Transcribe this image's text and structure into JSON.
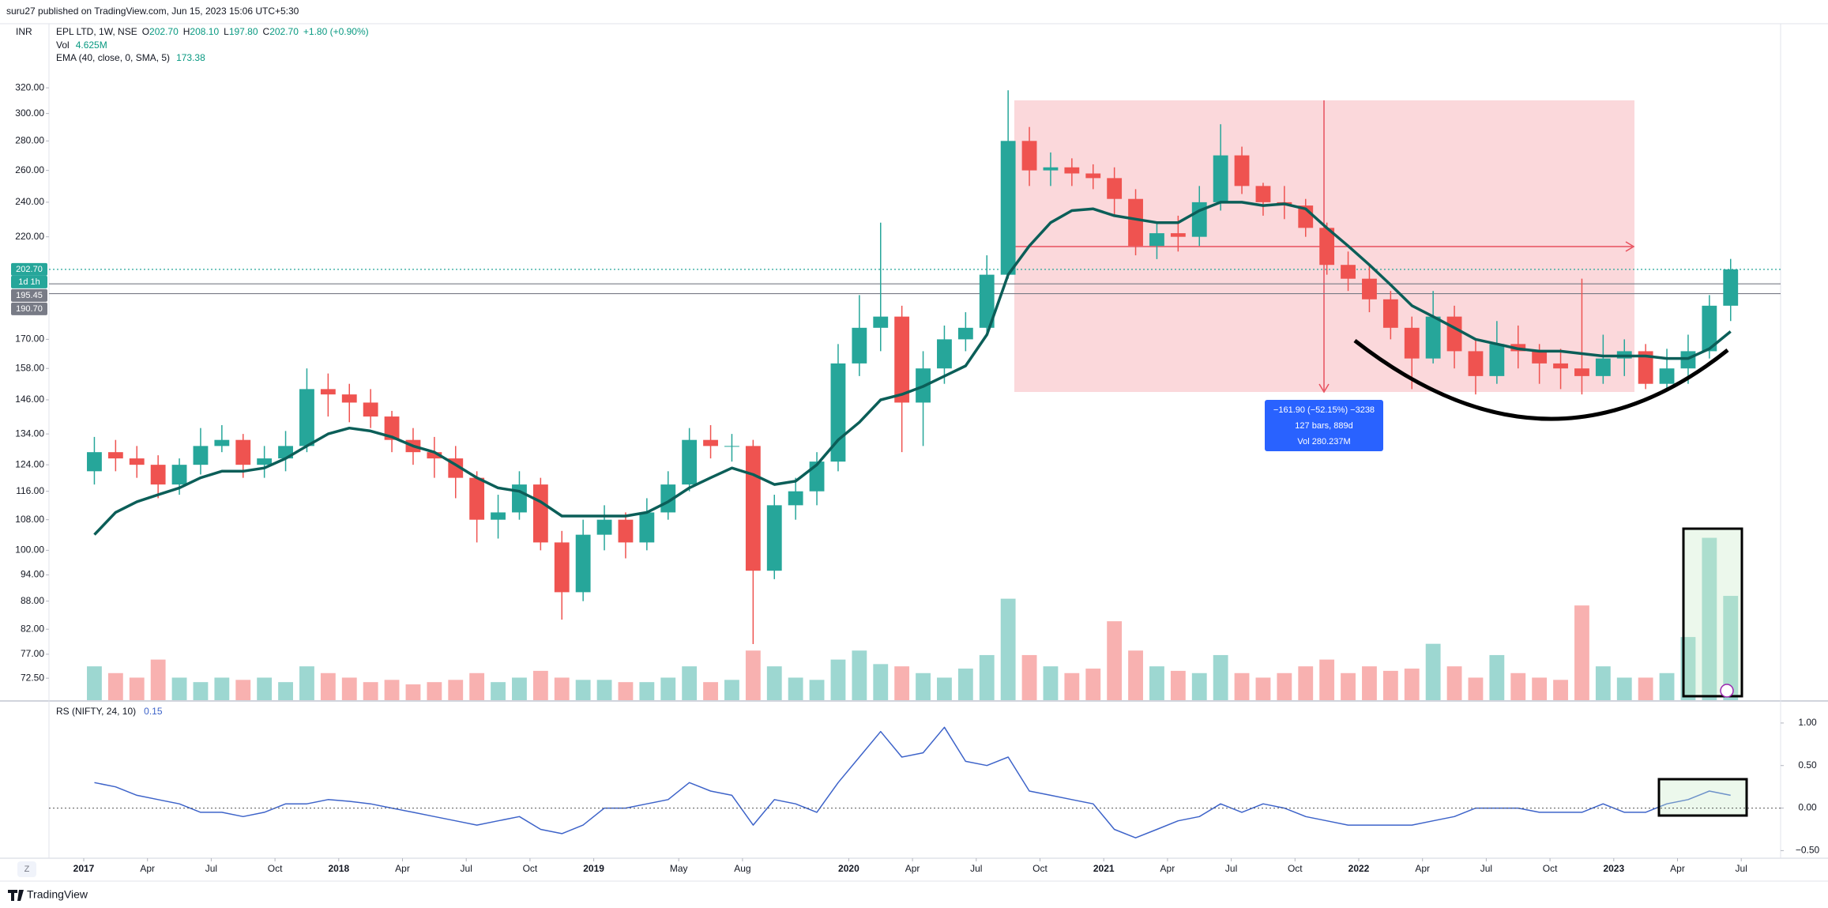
{
  "header": "suru27 published on TradingView.com, Jun 15, 2023 15:06 UTC+5:30",
  "currency": "INR",
  "zoom_button": "Z",
  "footer": "TradingView",
  "chart_data": [
    {
      "type": "candlestick",
      "title": "EPL LTD, 1W, NSE",
      "legend_ohlc": [
        {
          "label": "O",
          "value": "202.70"
        },
        {
          "label": "H",
          "value": "208.10"
        },
        {
          "label": "L",
          "value": "197.80"
        },
        {
          "label": "C",
          "value": "202.70"
        },
        {
          "value": "+1.80 (+0.90%)"
        }
      ],
      "x": [
        "2017-01",
        "2017-02",
        "2017-03",
        "2017-04",
        "2017-05",
        "2017-06",
        "2017-07",
        "2017-08",
        "2017-09",
        "2017-10",
        "2017-11",
        "2017-12",
        "2018-01",
        "2018-02",
        "2018-03",
        "2018-04",
        "2018-05",
        "2018-06",
        "2018-07",
        "2018-08",
        "2018-09",
        "2018-10",
        "2018-11",
        "2018-12",
        "2019-01",
        "2019-02",
        "2019-03",
        "2019-04",
        "2019-05",
        "2019-06",
        "2019-07",
        "2019-08",
        "2019-09",
        "2019-10",
        "2019-11",
        "2019-12",
        "2020-01",
        "2020-02",
        "2020-03",
        "2020-04",
        "2020-05",
        "2020-06",
        "2020-07",
        "2020-08",
        "2020-09",
        "2020-10",
        "2020-11",
        "2020-12",
        "2021-01",
        "2021-02",
        "2021-03",
        "2021-04",
        "2021-05",
        "2021-06",
        "2021-07",
        "2021-08",
        "2021-09",
        "2021-10",
        "2021-11",
        "2021-12",
        "2022-01",
        "2022-02",
        "2022-03",
        "2022-04",
        "2022-05",
        "2022-06",
        "2022-07",
        "2022-08",
        "2022-09",
        "2022-10",
        "2022-11",
        "2022-12",
        "2023-01",
        "2023-02",
        "2023-03",
        "2023-04",
        "2023-05",
        "2023-06"
      ],
      "open": [
        122,
        128,
        126,
        124,
        118,
        124,
        130,
        132,
        124,
        126,
        130,
        150,
        148,
        145,
        140,
        132,
        128,
        126,
        120,
        108,
        110,
        118,
        102,
        90,
        104,
        108,
        102,
        110,
        118,
        132,
        130,
        130,
        95,
        112,
        116,
        125,
        160,
        175,
        180,
        145,
        158,
        170,
        175,
        200,
        280,
        260,
        262,
        258,
        255,
        242,
        215,
        222,
        220,
        240,
        270,
        250,
        240,
        238,
        225,
        205,
        198,
        188,
        175,
        162,
        180,
        165,
        155,
        168,
        165,
        160,
        158,
        155,
        162,
        165,
        152,
        158,
        165,
        185
      ],
      "high": [
        133,
        132,
        130,
        127,
        126,
        136,
        137,
        134,
        130,
        135,
        158,
        156,
        152,
        150,
        142,
        136,
        133,
        130,
        122,
        115,
        122,
        120,
        105,
        108,
        112,
        110,
        114,
        122,
        136,
        137,
        134,
        132,
        115,
        120,
        128,
        168,
        190,
        228,
        185,
        165,
        176,
        182,
        210,
        318,
        290,
        272,
        268,
        264,
        262,
        248,
        228,
        232,
        250,
        292,
        276,
        252,
        250,
        242,
        228,
        212,
        205,
        192,
        180,
        192,
        185,
        170,
        178,
        176,
        168,
        166,
        198,
        172,
        170,
        168,
        166,
        172,
        190,
        208.1
      ],
      "low": [
        118,
        122,
        120,
        114,
        115,
        121,
        128,
        120,
        120,
        122,
        128,
        140,
        138,
        136,
        128,
        124,
        120,
        114,
        102,
        103,
        108,
        100,
        84,
        88,
        100,
        98,
        100,
        108,
        116,
        126,
        125,
        79,
        93,
        108,
        112,
        122,
        155,
        165,
        128,
        130,
        152,
        165,
        172,
        198,
        250,
        250,
        250,
        248,
        232,
        210,
        208,
        212,
        215,
        235,
        245,
        232,
        230,
        220,
        200,
        192,
        182,
        170,
        150,
        160,
        158,
        148,
        152,
        158,
        152,
        150,
        148,
        152,
        155,
        150,
        150,
        152,
        162,
        178
      ],
      "close": [
        128,
        126,
        124,
        118,
        124,
        130,
        132,
        124,
        126,
        130,
        150,
        148,
        145,
        140,
        132,
        128,
        126,
        120,
        108,
        110,
        118,
        102,
        90,
        104,
        108,
        102,
        110,
        118,
        132,
        130,
        130,
        95,
        112,
        116,
        125,
        160,
        175,
        180,
        145,
        158,
        170,
        175,
        200,
        280,
        260,
        262,
        258,
        255,
        242,
        215,
        222,
        220,
        240,
        270,
        250,
        240,
        238,
        225,
        205,
        198,
        188,
        175,
        162,
        180,
        165,
        155,
        168,
        165,
        160,
        158,
        155,
        162,
        165,
        152,
        158,
        165,
        185,
        202.7
      ],
      "up_color": "#26a69a",
      "down_color": "#ef5350",
      "log": true,
      "ylim": [
        68.6,
        376
      ],
      "yticks": [
        {
          "value": 320,
          "label": "320.00"
        },
        {
          "value": 300,
          "label": "300.00"
        },
        {
          "value": 280,
          "label": "280.00"
        },
        {
          "value": 260,
          "label": "260.00"
        },
        {
          "value": 240,
          "label": "240.00"
        },
        {
          "value": 220,
          "label": "220.00"
        },
        {
          "value": 170,
          "label": "170.00"
        },
        {
          "value": 158,
          "label": "158.00"
        },
        {
          "value": 146,
          "label": "146.00"
        },
        {
          "value": 134,
          "label": "134.00"
        },
        {
          "value": 124,
          "label": "124.00"
        },
        {
          "value": 116,
          "label": "116.00"
        },
        {
          "value": 108,
          "label": "108.00"
        },
        {
          "value": 100,
          "label": "100.00"
        },
        {
          "value": 94,
          "label": "94.00"
        },
        {
          "value": 88,
          "label": "88.00"
        },
        {
          "value": 82,
          "label": "82.00"
        },
        {
          "value": 77,
          "label": "77.00"
        },
        {
          "value": 72.5,
          "label": "72.50"
        }
      ],
      "grid": false,
      "price_labels": [
        {
          "value": 202.7,
          "label": "202.70",
          "color": "#26a69a"
        },
        {
          "value": 195.45,
          "label": "195.45",
          "color": "#787b86"
        },
        {
          "value": 190.7,
          "label": "190.70",
          "color": "#787b86"
        }
      ],
      "countdown": "1d 1h",
      "volume": {
        "name": "Vol",
        "legend": "4.625M",
        "values": [
          1.5,
          1.2,
          1.0,
          1.8,
          1.0,
          0.8,
          1.0,
          0.9,
          1.0,
          0.8,
          1.5,
          1.2,
          1.0,
          0.8,
          0.9,
          0.7,
          0.8,
          0.9,
          1.2,
          0.8,
          1.0,
          1.3,
          1.0,
          0.9,
          0.9,
          0.8,
          0.8,
          1.0,
          1.5,
          0.8,
          0.9,
          2.2,
          1.5,
          1.0,
          0.9,
          1.8,
          2.2,
          1.6,
          1.5,
          1.2,
          1.0,
          1.4,
          2.0,
          4.5,
          2.0,
          1.5,
          1.2,
          1.4,
          3.5,
          2.2,
          1.5,
          1.3,
          1.2,
          2.0,
          1.2,
          1.0,
          1.2,
          1.5,
          1.8,
          1.2,
          1.5,
          1.3,
          1.4,
          2.5,
          1.5,
          1.0,
          2.0,
          1.2,
          1.0,
          0.9,
          4.2,
          1.5,
          1.0,
          1.0,
          1.2,
          2.8,
          7.2,
          4.625
        ],
        "ylim": [
          0,
          30
        ]
      },
      "ema": {
        "name": "EMA (40, close, 0, SMA, 5)",
        "legend": "173.38",
        "color": "#0b5e58",
        "values": [
          104,
          110,
          113,
          115,
          117,
          120,
          122,
          122,
          123,
          126,
          130,
          134,
          136,
          135,
          133,
          130,
          128,
          124,
          120,
          117,
          116,
          113,
          109,
          109,
          109,
          109,
          110,
          113,
          117,
          120,
          123,
          121,
          118,
          119,
          124,
          132,
          138,
          146,
          148,
          151,
          155,
          159,
          172,
          200,
          215,
          228,
          235,
          236,
          232,
          230,
          228,
          228,
          235,
          240,
          240,
          238,
          239,
          236,
          225,
          215,
          205,
          195,
          185,
          180,
          175,
          170,
          168,
          166,
          165,
          165,
          164,
          163,
          163,
          163,
          162,
          162,
          166,
          173.38
        ]
      },
      "measure": [
        "−161.90 (−52.15%) −3238",
        "127 bars, 889d",
        "Vol 280.237M"
      ],
      "xticks": [
        {
          "value": "2017-01",
          "label": "2017"
        },
        {
          "value": "2017-04",
          "label": "Apr"
        },
        {
          "value": "2017-07",
          "label": "Jul"
        },
        {
          "value": "2017-10",
          "label": "Oct"
        },
        {
          "value": "2018-01",
          "label": "2018"
        },
        {
          "value": "2018-04",
          "label": "Apr"
        },
        {
          "value": "2018-07",
          "label": "Jul"
        },
        {
          "value": "2018-10",
          "label": "Oct"
        },
        {
          "value": "2019-01",
          "label": "2019"
        },
        {
          "value": "2019-05",
          "label": "May"
        },
        {
          "value": "2019-08",
          "label": "Aug"
        },
        {
          "value": "2020-01",
          "label": "2020"
        },
        {
          "value": "2020-04",
          "label": "Apr"
        },
        {
          "value": "2020-07",
          "label": "Jul"
        },
        {
          "value": "2020-10",
          "label": "Oct"
        },
        {
          "value": "2021-01",
          "label": "2021"
        },
        {
          "value": "2021-04",
          "label": "Apr"
        },
        {
          "value": "2021-07",
          "label": "Jul"
        },
        {
          "value": "2021-10",
          "label": "Oct"
        },
        {
          "value": "2022-01",
          "label": "2022"
        },
        {
          "value": "2022-04",
          "label": "Apr"
        },
        {
          "value": "2022-07",
          "label": "Jul"
        },
        {
          "value": "2022-10",
          "label": "Oct"
        },
        {
          "value": "2023-01",
          "label": "2023"
        },
        {
          "value": "2023-04",
          "label": "Apr"
        },
        {
          "value": "2023-07",
          "label": "Jul"
        }
      ]
    },
    {
      "type": "line",
      "title": "RS (NIFTY, 24, 10)",
      "legend": "0.15",
      "color": "#3d63c9",
      "values": [
        0.3,
        0.25,
        0.15,
        0.1,
        0.05,
        -0.05,
        -0.05,
        -0.1,
        -0.05,
        0.05,
        0.05,
        0.1,
        0.08,
        0.05,
        0.0,
        -0.05,
        -0.1,
        -0.15,
        -0.2,
        -0.15,
        -0.1,
        -0.25,
        -0.3,
        -0.2,
        0.0,
        0.0,
        0.05,
        0.1,
        0.3,
        0.2,
        0.15,
        -0.2,
        0.1,
        0.05,
        -0.05,
        0.3,
        0.6,
        0.9,
        0.6,
        0.65,
        0.95,
        0.55,
        0.5,
        0.6,
        0.2,
        0.15,
        0.1,
        0.05,
        -0.25,
        -0.35,
        -0.25,
        -0.15,
        -0.1,
        0.05,
        -0.05,
        0.05,
        0.0,
        -0.1,
        -0.15,
        -0.2,
        -0.2,
        -0.2,
        -0.2,
        -0.15,
        -0.1,
        0.0,
        0.0,
        0.0,
        -0.05,
        -0.05,
        -0.05,
        0.05,
        -0.05,
        -0.05,
        0.05,
        0.1,
        0.2,
        0.15
      ],
      "ylim": [
        -0.58,
        1.25
      ],
      "yticks": [
        {
          "value": 1,
          "label": "1.00"
        },
        {
          "value": 0.5,
          "label": "0.50"
        },
        {
          "value": 0,
          "label": "0.00"
        },
        {
          "value": -0.5,
          "label": "−0.50"
        }
      ],
      "hline": 0
    }
  ]
}
